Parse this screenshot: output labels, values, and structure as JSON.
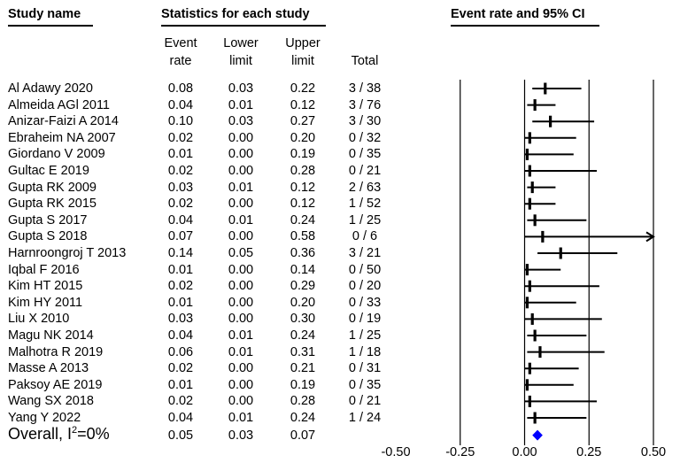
{
  "headers": {
    "study_name": "Study name",
    "statistics": "Statistics for each study",
    "ci": "Event rate and 95% CI"
  },
  "column_headers": {
    "event_rate": [
      "Event",
      "rate"
    ],
    "lower": [
      "Lower",
      "limit"
    ],
    "upper": [
      "Upper",
      "limit"
    ],
    "total": "Total"
  },
  "studies": [
    {
      "name": "Al Adawy 2020",
      "rate": "0.08",
      "lower": "0.03",
      "upper": "0.22",
      "total": "3 / 38"
    },
    {
      "name": "Almeida AGl 2011",
      "rate": "0.04",
      "lower": "0.01",
      "upper": "0.12",
      "total": "3 / 76"
    },
    {
      "name": "Anizar-Faizi A 2014",
      "rate": "0.10",
      "lower": "0.03",
      "upper": "0.27",
      "total": "3 / 30"
    },
    {
      "name": "Ebraheim NA 2007",
      "rate": "0.02",
      "lower": "0.00",
      "upper": "0.20",
      "total": "0 / 32"
    },
    {
      "name": "Giordano V 2009",
      "rate": "0.01",
      "lower": "0.00",
      "upper": "0.19",
      "total": "0 / 35"
    },
    {
      "name": "Gultac E 2019",
      "rate": "0.02",
      "lower": "0.00",
      "upper": "0.28",
      "total": "0 / 21"
    },
    {
      "name": "Gupta RK 2009",
      "rate": "0.03",
      "lower": "0.01",
      "upper": "0.12",
      "total": "2 / 63"
    },
    {
      "name": "Gupta RK 2015",
      "rate": "0.02",
      "lower": "0.00",
      "upper": "0.12",
      "total": "1 / 52"
    },
    {
      "name": "Gupta S 2017",
      "rate": "0.04",
      "lower": "0.01",
      "upper": "0.24",
      "total": "1 / 25"
    },
    {
      "name": "Gupta S 2018",
      "rate": "0.07",
      "lower": "0.00",
      "upper": "0.58",
      "total": "0 / 6"
    },
    {
      "name": "Harnroongroj T 2013",
      "rate": "0.14",
      "lower": "0.05",
      "upper": "0.36",
      "total": "3 / 21"
    },
    {
      "name": "Iqbal F 2016",
      "rate": "0.01",
      "lower": "0.00",
      "upper": "0.14",
      "total": "0 / 50"
    },
    {
      "name": "Kim HT 2015",
      "rate": "0.02",
      "lower": "0.00",
      "upper": "0.29",
      "total": "0 / 20"
    },
    {
      "name": "Kim HY 2011",
      "rate": "0.01",
      "lower": "0.00",
      "upper": "0.20",
      "total": "0 / 33"
    },
    {
      "name": "Liu X 2010",
      "rate": "0.03",
      "lower": "0.00",
      "upper": "0.30",
      "total": "0 / 19"
    },
    {
      "name": "Magu NK 2014",
      "rate": "0.04",
      "lower": "0.01",
      "upper": "0.24",
      "total": "1 / 25"
    },
    {
      "name": "Malhotra R 2019",
      "rate": "0.06",
      "lower": "0.01",
      "upper": "0.31",
      "total": "1 / 18"
    },
    {
      "name": "Masse A 2013",
      "rate": "0.02",
      "lower": "0.00",
      "upper": "0.21",
      "total": "0 / 31"
    },
    {
      "name": "Paksoy AE 2019",
      "rate": "0.01",
      "lower": "0.00",
      "upper": "0.19",
      "total": "0 / 35"
    },
    {
      "name": "Wang SX 2018",
      "rate": "0.02",
      "lower": "0.00",
      "upper": "0.28",
      "total": "0 / 21"
    },
    {
      "name": "Yang Y 2022",
      "rate": "0.04",
      "lower": "0.01",
      "upper": "0.24",
      "total": "1 / 24"
    }
  ],
  "overall": {
    "label_prefix": "Overall, I",
    "label_sup": "2",
    "label_suffix": "=0%",
    "rate": "0.05",
    "lower": "0.03",
    "upper": "0.07"
  },
  "chart_data": {
    "type": "forest",
    "title": "Event rate and 95% CI",
    "categories": [
      "Al Adawy 2020",
      "Almeida AGl 2011",
      "Anizar-Faizi A 2014",
      "Ebraheim NA 2007",
      "Giordano V 2009",
      "Gultac E 2019",
      "Gupta RK 2009",
      "Gupta RK 2015",
      "Gupta S 2017",
      "Gupta S 2018",
      "Harnroongroj T 2013",
      "Iqbal F 2016",
      "Kim HT 2015",
      "Kim HY 2011",
      "Liu X 2010",
      "Magu NK 2014",
      "Malhotra R 2019",
      "Masse A 2013",
      "Paksoy AE 2019",
      "Wang SX 2018",
      "Yang Y 2022"
    ],
    "point": [
      0.08,
      0.04,
      0.1,
      0.02,
      0.01,
      0.02,
      0.03,
      0.02,
      0.04,
      0.07,
      0.14,
      0.01,
      0.02,
      0.01,
      0.03,
      0.04,
      0.06,
      0.02,
      0.01,
      0.02,
      0.04
    ],
    "lower": [
      0.03,
      0.01,
      0.03,
      0.0,
      0.0,
      0.0,
      0.01,
      0.0,
      0.01,
      0.0,
      0.05,
      0.0,
      0.0,
      0.0,
      0.0,
      0.01,
      0.01,
      0.0,
      0.0,
      0.0,
      0.01
    ],
    "upper": [
      0.22,
      0.12,
      0.27,
      0.2,
      0.19,
      0.28,
      0.12,
      0.12,
      0.24,
      0.58,
      0.36,
      0.14,
      0.29,
      0.2,
      0.3,
      0.24,
      0.31,
      0.21,
      0.19,
      0.28,
      0.24
    ],
    "overall": {
      "point": 0.05,
      "lower": 0.03,
      "upper": 0.07
    },
    "xlim": [
      -0.5,
      0.5
    ],
    "xticks": [
      "-0.50",
      "-0.25",
      "0.00",
      "0.25",
      "0.50"
    ],
    "xtick_values": [
      -0.5,
      -0.25,
      0.0,
      0.25,
      0.5
    ],
    "clipped_arrow_right": [
      false,
      false,
      false,
      false,
      false,
      false,
      false,
      false,
      false,
      true,
      false,
      false,
      false,
      false,
      false,
      false,
      false,
      false,
      false,
      false,
      false
    ],
    "marker_color": "#000000",
    "overall_color": "#0000ff"
  }
}
